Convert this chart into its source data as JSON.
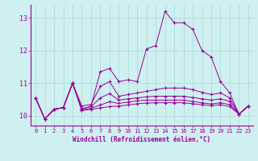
{
  "xlabel": "Windchill (Refroidissement éolien,°C)",
  "ylabel": "",
  "background_color": "#cff0f0",
  "line_color": "#990099",
  "xlim": [
    -0.5,
    23.5
  ],
  "ylim": [
    9.7,
    13.4
  ],
  "yticks": [
    10,
    11,
    12,
    13
  ],
  "xticks": [
    0,
    1,
    2,
    3,
    4,
    5,
    6,
    7,
    8,
    9,
    10,
    11,
    12,
    13,
    14,
    15,
    16,
    17,
    18,
    19,
    20,
    21,
    22,
    23
  ],
  "lines": [
    [
      10.55,
      9.9,
      10.2,
      10.25,
      11.0,
      10.2,
      10.3,
      11.35,
      11.45,
      11.05,
      11.1,
      11.05,
      12.05,
      12.15,
      13.2,
      12.85,
      12.85,
      12.65,
      12.0,
      11.8,
      11.05,
      10.7,
      10.05,
      10.3
    ],
    [
      10.55,
      9.9,
      10.2,
      10.25,
      11.0,
      10.3,
      10.35,
      10.9,
      11.05,
      10.6,
      10.65,
      10.7,
      10.75,
      10.8,
      10.85,
      10.85,
      10.85,
      10.8,
      10.72,
      10.65,
      10.7,
      10.55,
      10.05,
      10.3
    ],
    [
      10.55,
      9.9,
      10.2,
      10.25,
      11.0,
      10.22,
      10.28,
      10.55,
      10.68,
      10.48,
      10.52,
      10.55,
      10.58,
      10.6,
      10.6,
      10.6,
      10.6,
      10.56,
      10.52,
      10.48,
      10.52,
      10.44,
      10.05,
      10.3
    ],
    [
      10.55,
      9.9,
      10.2,
      10.25,
      11.0,
      10.18,
      10.23,
      10.33,
      10.43,
      10.38,
      10.42,
      10.46,
      10.48,
      10.48,
      10.48,
      10.48,
      10.48,
      10.44,
      10.4,
      10.36,
      10.4,
      10.34,
      10.05,
      10.3
    ],
    [
      10.55,
      9.9,
      10.2,
      10.25,
      11.0,
      10.16,
      10.2,
      10.24,
      10.28,
      10.3,
      10.33,
      10.37,
      10.39,
      10.4,
      10.4,
      10.4,
      10.4,
      10.37,
      10.34,
      10.31,
      10.34,
      10.28,
      10.05,
      10.3
    ]
  ]
}
